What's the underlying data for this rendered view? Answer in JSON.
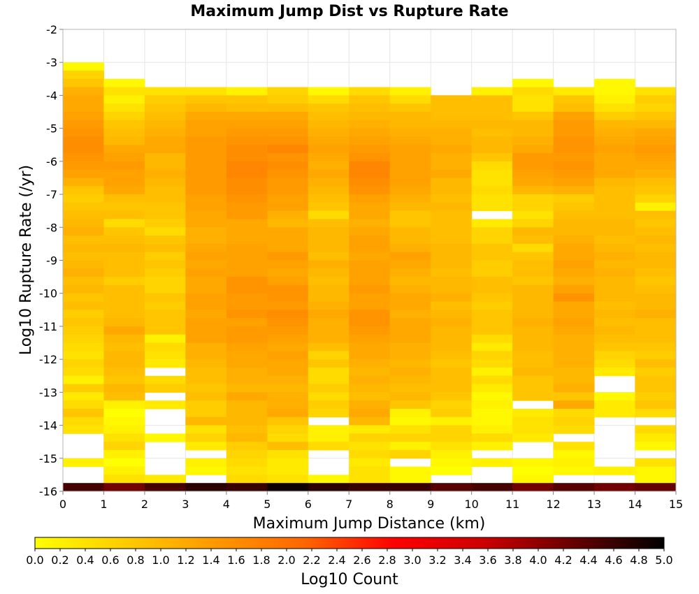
{
  "chart_data": {
    "type": "heatmap",
    "title": "Maximum Jump Dist vs Rupture Rate",
    "xlabel": "Maximum Jump Distance (km)",
    "ylabel": "Log10 Rupture Rate (/yr)",
    "colorbar_label": "Log10 Count",
    "xlim": [
      0,
      15
    ],
    "ylim": [
      -16,
      -2
    ],
    "x_ticks": [
      "0",
      "1",
      "2",
      "3",
      "4",
      "5",
      "6",
      "7",
      "8",
      "9",
      "10",
      "11",
      "12",
      "13",
      "14",
      "15"
    ],
    "y_ticks": [
      "-2",
      "-3",
      "-4",
      "-5",
      "-6",
      "-7",
      "-8",
      "-9",
      "-10",
      "-11",
      "-12",
      "-13",
      "-14",
      "-15",
      "-16"
    ],
    "colorbar_ticks": [
      "0.0",
      "0.2",
      "0.4",
      "0.6",
      "0.8",
      "1.0",
      "1.2",
      "1.4",
      "1.6",
      "1.8",
      "2.0",
      "2.2",
      "2.4",
      "2.6",
      "2.8",
      "3.0",
      "3.2",
      "3.4",
      "3.6",
      "3.8",
      "4.0",
      "4.2",
      "4.4",
      "4.6",
      "4.8",
      "5.0"
    ],
    "color_range": [
      0,
      5
    ],
    "colormap": [
      "#ffff00",
      "#ffcc00",
      "#ff9900",
      "#ff6600",
      "#ff0000",
      "#cc0000",
      "#660000",
      "#000000"
    ],
    "x_bin_width": 1,
    "y_bin_width": 0.25,
    "x_bin_starts": [
      0,
      1,
      2,
      3,
      4,
      5,
      6,
      7,
      8,
      9,
      10,
      11,
      12,
      13,
      14
    ],
    "y_bin_tops": [
      -3,
      -3.25,
      -3.5,
      -3.75,
      -4,
      -4.25,
      -4.5,
      -4.75,
      -5,
      -5.25,
      -5.5,
      -5.75,
      -6,
      -6.25,
      -6.5,
      -6.75,
      -7,
      -7.25,
      -7.5,
      -7.75,
      -8,
      -8.25,
      -8.5,
      -8.75,
      -9,
      -9.25,
      -9.5,
      -9.75,
      -10,
      -10.25,
      -10.5,
      -10.75,
      -11,
      -11.25,
      -11.5,
      -11.75,
      -12,
      -12.25,
      -12.5,
      -12.75,
      -13,
      -13.25,
      -13.5,
      -13.75,
      -14,
      -14.25,
      -14.5,
      -14.75,
      -15,
      -15.25,
      -15.5,
      -15.75
    ],
    "values_note": "values[row][col]; row 0 is the bin whose top is -3; null = empty bin",
    "values": [
      [
        0.1,
        null,
        null,
        null,
        null,
        null,
        null,
        null,
        null,
        null,
        null,
        null,
        null,
        null,
        null
      ],
      [
        0.6,
        null,
        null,
        null,
        null,
        null,
        null,
        null,
        null,
        null,
        null,
        null,
        null,
        null,
        null
      ],
      [
        0.8,
        0.1,
        null,
        null,
        null,
        null,
        null,
        null,
        null,
        null,
        null,
        0.1,
        null,
        0.1,
        null
      ],
      [
        1.1,
        0.4,
        0.4,
        0.4,
        0.2,
        0.6,
        0.1,
        0.5,
        0.2,
        null,
        0.2,
        0.5,
        0.3,
        0.1,
        0.4
      ],
      [
        1.2,
        0.2,
        0.7,
        0.8,
        0.8,
        0.7,
        0.5,
        0.8,
        0.5,
        0.9,
        0.9,
        0.4,
        0.8,
        0.2,
        0.7
      ],
      [
        1.2,
        0.4,
        0.8,
        1.0,
        0.9,
        0.9,
        0.8,
        0.9,
        0.8,
        0.9,
        0.9,
        0.4,
        0.9,
        0.4,
        0.6
      ],
      [
        1.3,
        0.6,
        0.9,
        1.2,
        1.2,
        1.2,
        0.9,
        1.0,
        1.0,
        0.9,
        0.9,
        0.8,
        1.3,
        0.7,
        0.8
      ],
      [
        1.4,
        0.8,
        1.0,
        1.3,
        1.3,
        1.3,
        1.0,
        1.1,
        1.0,
        1.0,
        1.0,
        1.0,
        1.4,
        1.0,
        1.0
      ],
      [
        1.5,
        0.9,
        1.1,
        1.3,
        1.4,
        1.4,
        1.1,
        1.2,
        1.1,
        1.1,
        0.9,
        1.0,
        1.4,
        1.1,
        1.2
      ],
      [
        1.6,
        1.0,
        1.2,
        1.4,
        1.5,
        1.5,
        1.2,
        1.3,
        1.2,
        1.1,
        1.0,
        1.1,
        1.5,
        1.2,
        1.3
      ],
      [
        1.6,
        1.2,
        1.2,
        1.4,
        1.6,
        1.7,
        1.3,
        1.4,
        1.3,
        1.2,
        1.0,
        1.2,
        1.5,
        1.3,
        1.4
      ],
      [
        1.5,
        1.3,
        1.0,
        1.4,
        1.6,
        1.5,
        1.2,
        1.5,
        1.3,
        1.1,
        0.8,
        1.4,
        1.4,
        1.2,
        1.3
      ],
      [
        1.4,
        1.4,
        1.0,
        1.4,
        1.7,
        1.6,
        1.1,
        1.7,
        1.3,
        1.1,
        0.5,
        1.4,
        1.5,
        1.2,
        1.2
      ],
      [
        1.3,
        1.3,
        1.1,
        1.4,
        1.7,
        1.5,
        1.2,
        1.7,
        1.3,
        1.2,
        0.4,
        1.3,
        1.4,
        1.2,
        1.1
      ],
      [
        1.1,
        1.3,
        1.0,
        1.4,
        1.6,
        1.4,
        1.1,
        1.6,
        1.3,
        1.0,
        0.4,
        1.2,
        1.3,
        1.0,
        0.9
      ],
      [
        0.8,
        1.2,
        0.9,
        1.4,
        1.6,
        1.4,
        1.0,
        1.5,
        1.2,
        1.0,
        0.5,
        1.0,
        1.1,
        0.9,
        0.8
      ],
      [
        0.7,
        0.9,
        0.9,
        1.3,
        1.5,
        1.3,
        0.9,
        1.3,
        1.1,
        0.9,
        0.4,
        0.6,
        0.7,
        0.9,
        0.6
      ],
      [
        0.8,
        0.8,
        0.8,
        1.3,
        1.4,
        1.3,
        0.8,
        1.2,
        1.0,
        1.0,
        0.4,
        0.6,
        0.8,
        0.9,
        0.2
      ],
      [
        0.9,
        0.9,
        0.8,
        1.2,
        1.4,
        1.1,
        0.5,
        1.2,
        0.8,
        0.9,
        null,
        0.4,
        0.9,
        0.9,
        0.9
      ],
      [
        1.0,
        0.5,
        0.7,
        1.2,
        1.2,
        1.0,
        0.9,
        1.1,
        0.8,
        0.9,
        0.3,
        0.6,
        1.0,
        1.0,
        0.8
      ],
      [
        1.1,
        0.8,
        0.5,
        1.1,
        1.2,
        1.2,
        1.0,
        1.2,
        1.0,
        0.9,
        0.6,
        1.0,
        1.0,
        1.0,
        0.9
      ],
      [
        0.9,
        0.9,
        0.8,
        1.1,
        1.2,
        1.2,
        1.0,
        1.3,
        1.0,
        0.9,
        0.6,
        0.9,
        1.1,
        0.9,
        1.0
      ],
      [
        1.0,
        1.0,
        0.9,
        1.2,
        1.3,
        1.2,
        1.0,
        1.3,
        1.1,
        1.0,
        0.8,
        0.5,
        1.2,
        1.0,
        0.9
      ],
      [
        0.9,
        0.9,
        0.7,
        1.3,
        1.3,
        1.4,
        0.9,
        1.2,
        1.3,
        1.0,
        0.8,
        0.8,
        1.2,
        1.1,
        1.0
      ],
      [
        1.0,
        0.9,
        0.8,
        1.2,
        1.3,
        1.3,
        1.1,
        1.3,
        1.2,
        1.0,
        0.7,
        0.9,
        1.3,
        1.0,
        1.0
      ],
      [
        1.1,
        0.9,
        0.7,
        1.3,
        1.3,
        1.2,
        1.0,
        1.3,
        1.1,
        0.9,
        0.7,
        0.9,
        1.2,
        1.1,
        0.9
      ],
      [
        0.9,
        0.7,
        0.6,
        1.2,
        1.5,
        1.3,
        0.9,
        1.3,
        1.0,
        1.0,
        0.9,
        0.8,
        1.1,
        1.0,
        0.8
      ],
      [
        1.0,
        0.9,
        0.6,
        1.2,
        1.5,
        1.5,
        1.0,
        1.4,
        1.1,
        1.0,
        0.9,
        1.0,
        1.3,
        1.0,
        0.9
      ],
      [
        0.8,
        0.9,
        0.8,
        1.3,
        1.4,
        1.5,
        1.0,
        1.3,
        1.2,
        1.1,
        0.8,
        1.0,
        1.5,
        1.0,
        1.0
      ],
      [
        0.9,
        0.9,
        0.7,
        1.3,
        1.4,
        1.4,
        1.1,
        1.3,
        1.2,
        0.9,
        0.7,
        1.0,
        1.2,
        0.9,
        1.0
      ],
      [
        0.7,
        0.9,
        0.8,
        1.2,
        1.5,
        1.6,
        1.2,
        1.5,
        1.1,
        1.0,
        0.8,
        1.0,
        1.2,
        1.0,
        1.1
      ],
      [
        0.8,
        1.0,
        0.8,
        1.3,
        1.3,
        1.5,
        1.1,
        1.5,
        1.2,
        1.1,
        0.8,
        1.1,
        1.3,
        0.9,
        0.9
      ],
      [
        0.7,
        1.2,
        0.8,
        1.3,
        1.4,
        1.4,
        1.1,
        1.4,
        1.2,
        1.0,
        0.8,
        1.0,
        1.2,
        1.0,
        0.9
      ],
      [
        0.6,
        1.0,
        0.2,
        1.3,
        1.4,
        1.3,
        1.1,
        1.3,
        1.2,
        1.0,
        0.5,
        1.0,
        1.1,
        0.9,
        0.9
      ],
      [
        0.5,
        0.9,
        0.5,
        1.1,
        1.3,
        1.2,
        0.9,
        1.2,
        1.1,
        1.0,
        0.3,
        1.0,
        1.1,
        0.8,
        0.8
      ],
      [
        0.4,
        1.0,
        0.4,
        1.1,
        1.2,
        1.3,
        0.6,
        1.2,
        1.1,
        0.9,
        0.6,
        0.9,
        1.1,
        0.6,
        0.7
      ],
      [
        0.6,
        1.0,
        0.3,
        1.0,
        1.2,
        1.2,
        0.8,
        1.1,
        1.0,
        0.8,
        0.5,
        0.9,
        1.1,
        0.5,
        0.9
      ],
      [
        0.5,
        0.9,
        null,
        0.9,
        1.1,
        1.2,
        0.5,
        1.0,
        1.1,
        0.9,
        0.2,
        1.0,
        1.0,
        0.3,
        0.7
      ],
      [
        0.2,
        0.8,
        0.5,
        0.9,
        1.1,
        1.1,
        0.5,
        1.1,
        1.0,
        0.9,
        0.5,
        0.8,
        1.0,
        null,
        0.8
      ],
      [
        0.7,
        1.0,
        0.7,
        0.8,
        1.0,
        1.0,
        0.7,
        1.0,
        0.9,
        0.9,
        0.3,
        0.8,
        1.1,
        null,
        0.8
      ],
      [
        0.3,
        0.9,
        null,
        0.9,
        1.2,
        1.1,
        0.5,
        0.9,
        1.0,
        0.8,
        0.1,
        0.8,
        0.8,
        0.1,
        0.7
      ],
      [
        0.5,
        0.2,
        0.3,
        0.7,
        1.0,
        1.1,
        0.7,
        1.1,
        0.8,
        0.6,
        0.2,
        null,
        1.2,
        0.3,
        0.8
      ],
      [
        0.8,
        0.0,
        null,
        0.7,
        1.0,
        1.2,
        0.6,
        1.2,
        0.2,
        0.7,
        0.1,
        0.3,
        0.5,
        0.3,
        0.5
      ],
      [
        0.5,
        0.1,
        null,
        1.0,
        1.0,
        0.8,
        null,
        1.0,
        0.1,
        0.2,
        0.1,
        0.4,
        0.6,
        null,
        null
      ],
      [
        0.4,
        0.2,
        null,
        0.4,
        0.9,
        0.6,
        0.2,
        0.3,
        0.4,
        0.6,
        0.2,
        0.4,
        0.5,
        null,
        0.5
      ],
      [
        null,
        0.4,
        0.1,
        0.6,
        1.0,
        0.5,
        0.2,
        0.6,
        0.6,
        0.6,
        0.5,
        0.3,
        null,
        null,
        0.3
      ],
      [
        null,
        0.6,
        null,
        0.3,
        0.7,
        0.9,
        0.5,
        0.4,
        0.2,
        0.4,
        0.2,
        null,
        0.4,
        null,
        0.1
      ],
      [
        null,
        0.2,
        null,
        null,
        0.6,
        0.4,
        null,
        0.5,
        0.6,
        0.2,
        null,
        null,
        0.1,
        null,
        null
      ],
      [
        0.2,
        0.0,
        null,
        0.2,
        0.5,
        0.3,
        null,
        0.3,
        null,
        0.1,
        0.2,
        0.1,
        0.2,
        null,
        0.4
      ],
      [
        null,
        0.2,
        null,
        0.1,
        0.4,
        0.3,
        null,
        0.4,
        0.1,
        0.0,
        null,
        0.0,
        0.1,
        0.2,
        0.1
      ],
      [
        null,
        0.4,
        0.3,
        null,
        0.5,
        0.4,
        0.1,
        0.4,
        0.1,
        null,
        null,
        0.1,
        null,
        null,
        0.1
      ],
      [
        4.5,
        4.2,
        4.5,
        4.7,
        4.6,
        4.9,
        4.7,
        4.6,
        4.6,
        4.4,
        4.5,
        4.2,
        4.4,
        4.2,
        4.3
      ]
    ]
  }
}
